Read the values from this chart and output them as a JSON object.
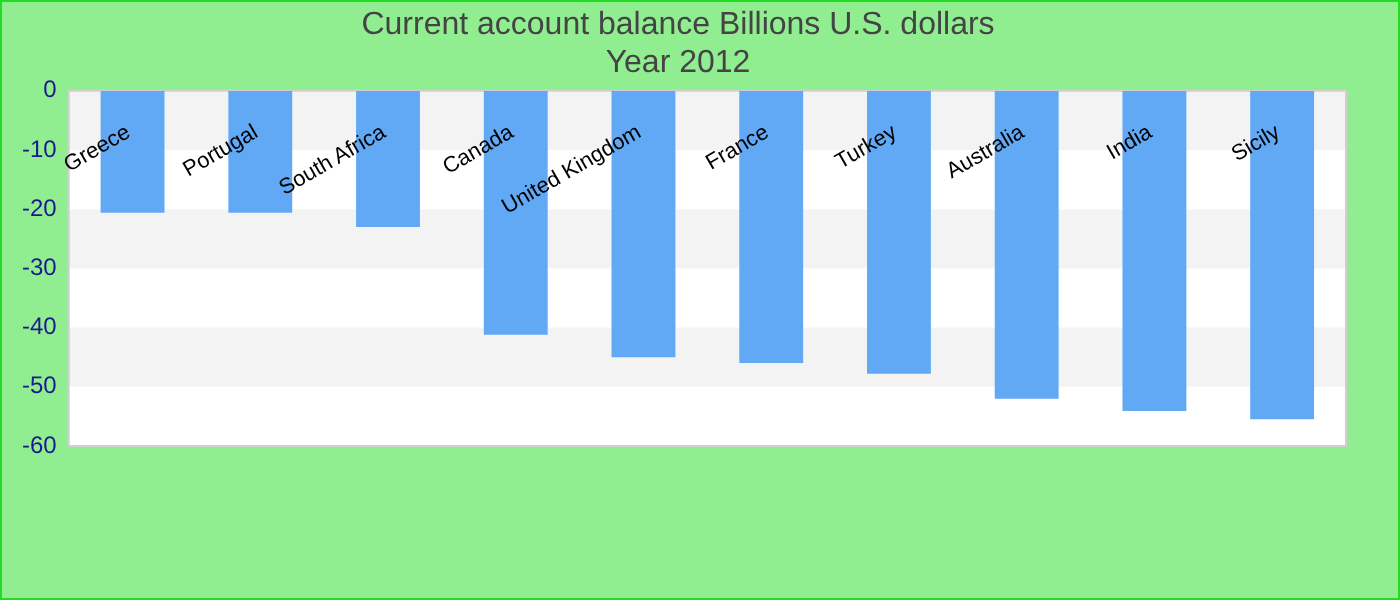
{
  "chart_data": {
    "type": "bar",
    "title": "Current account balance Billions U.S. dollars",
    "subtitle": "Year 2012",
    "categories": [
      "Greece",
      "Portugal",
      "South Africa",
      "Canada",
      "United Kingdom",
      "France",
      "Turkey",
      "Australia",
      "India",
      "Sicily"
    ],
    "values": [
      -20.6,
      -20.6,
      -23,
      -41.2,
      -45,
      -46,
      -47.8,
      -52,
      -54.1,
      -55.5
    ],
    "color": "#62a9f5",
    "ylim": [
      -60,
      0
    ],
    "yticks": [
      0,
      -10,
      -20,
      -30,
      -40,
      -50,
      -60
    ]
  }
}
